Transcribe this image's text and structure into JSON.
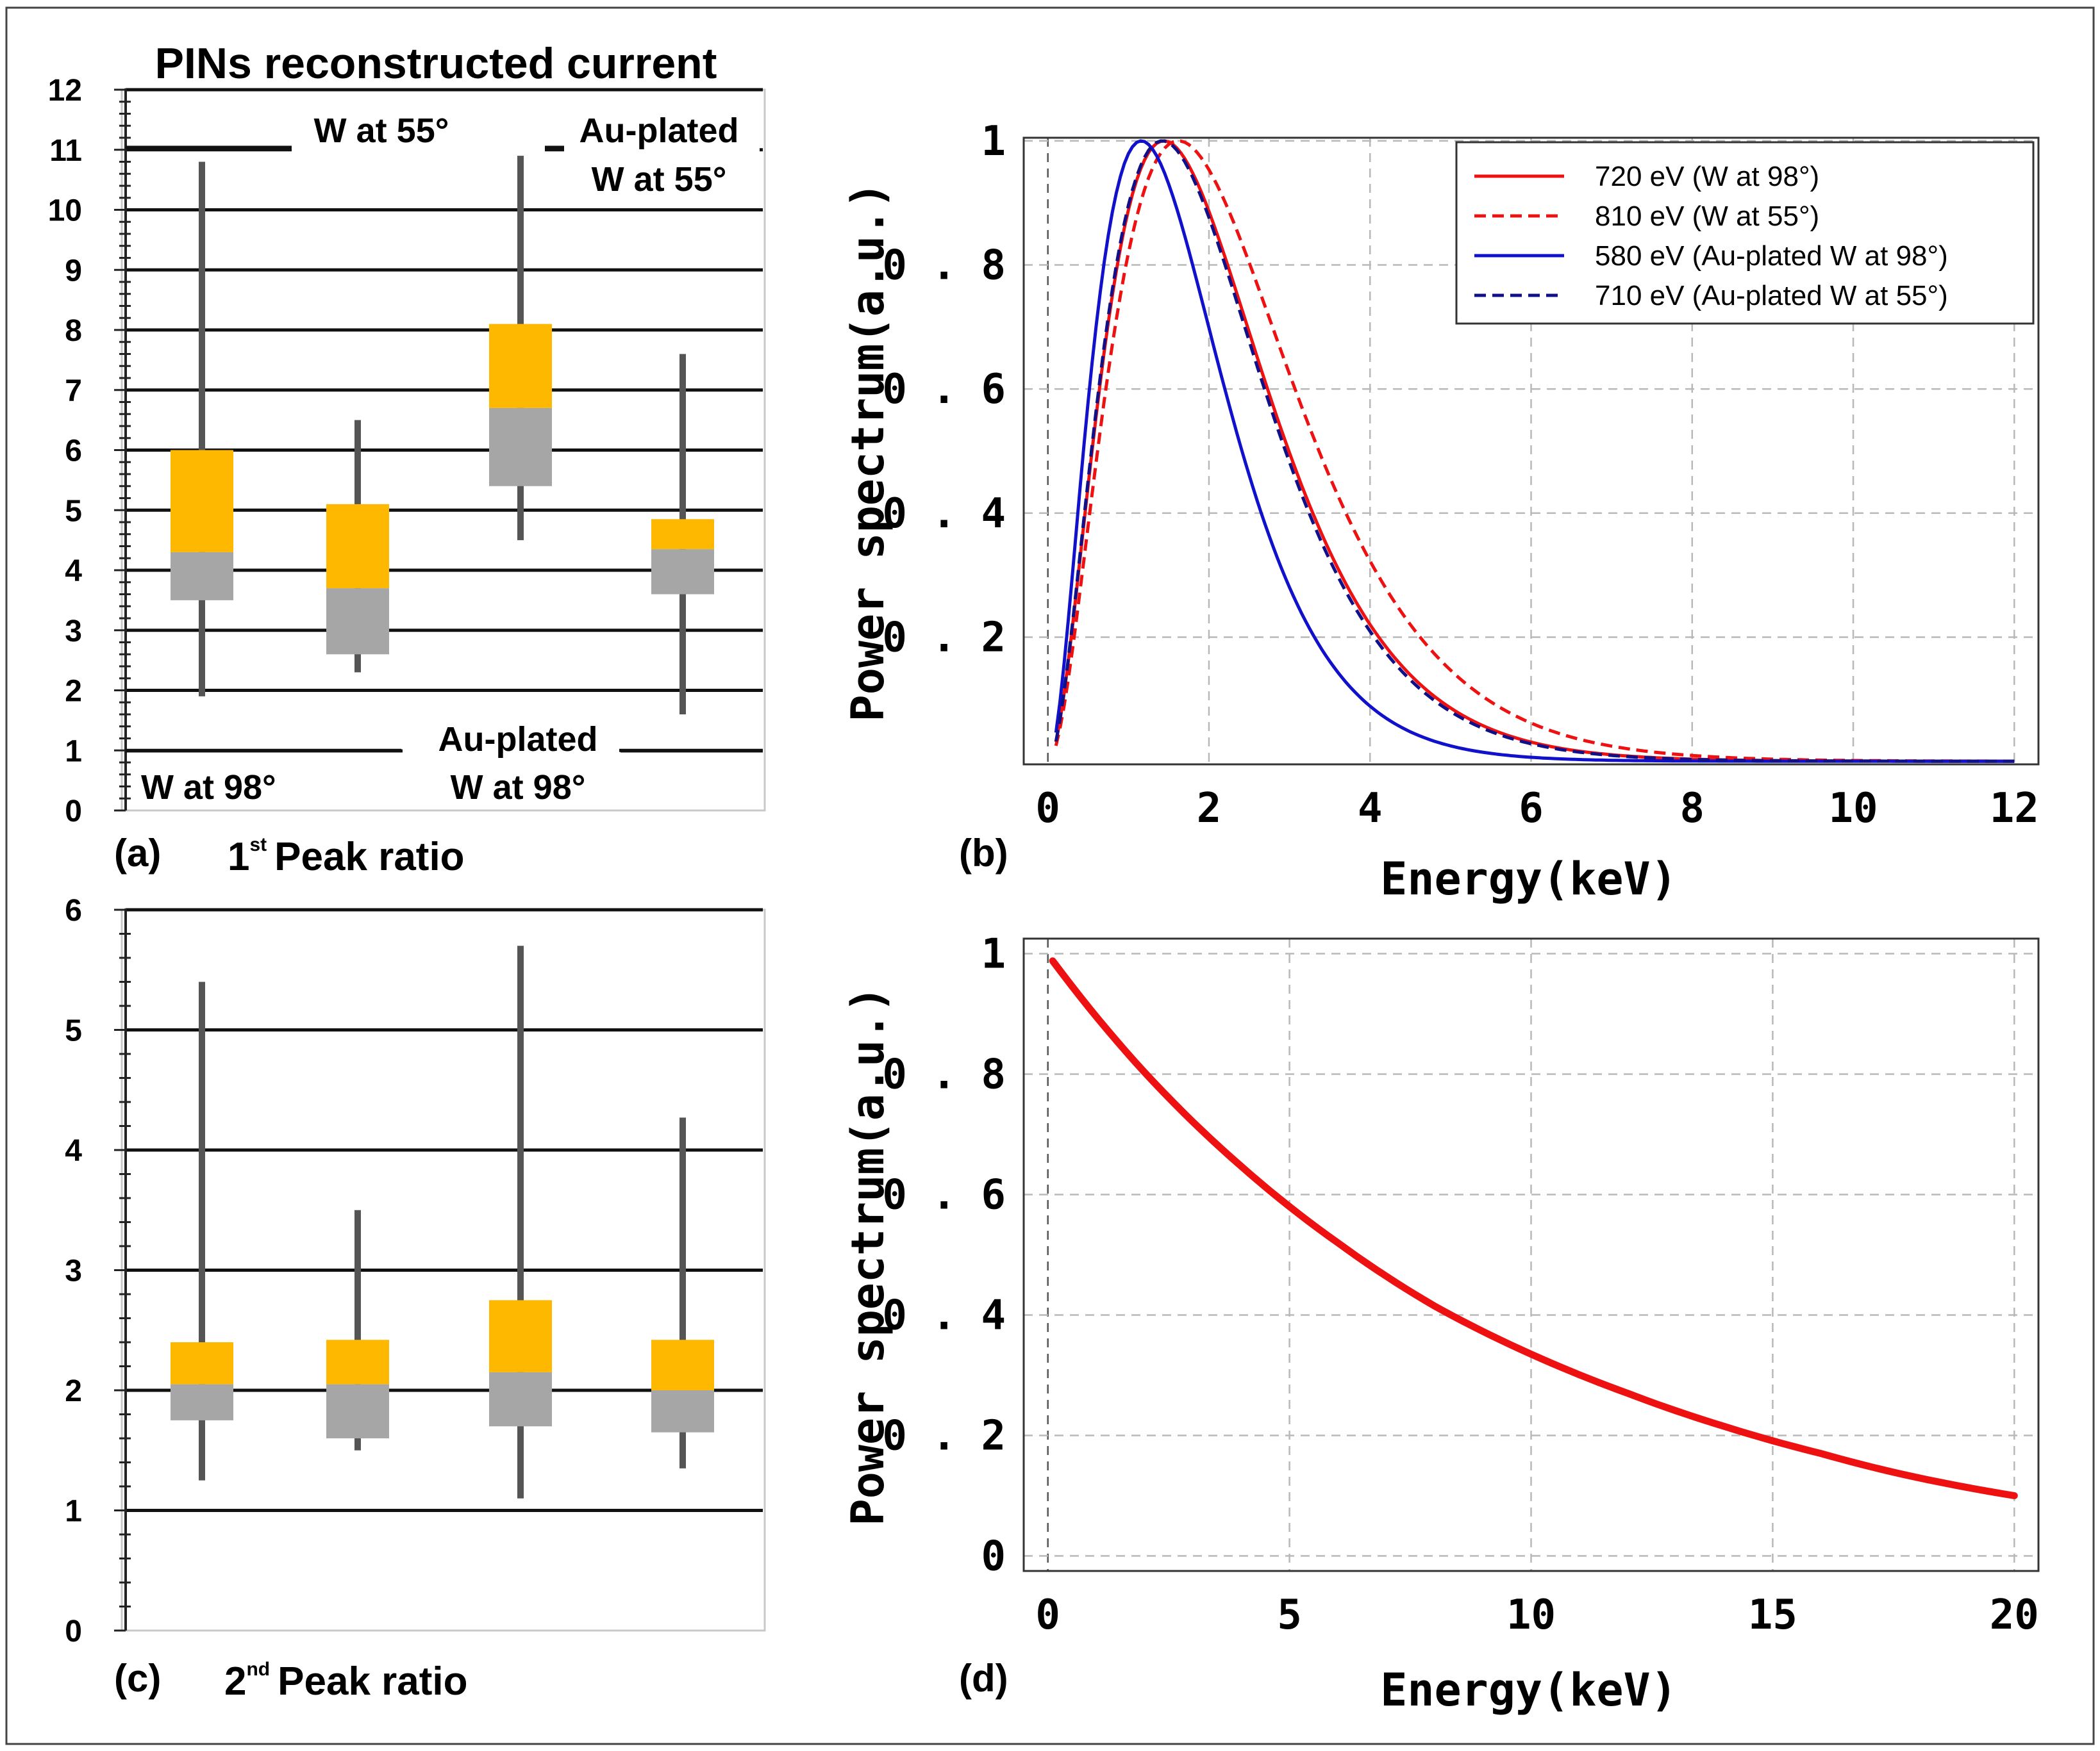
{
  "colors": {
    "box_upper": "#FFB800",
    "box_lower": "#A6A6A6",
    "whisker": "#555555",
    "red": "#EE1111",
    "blue": "#1111CC",
    "navy": "#101088"
  },
  "panel_a": {
    "label": "(a)",
    "title": "PINs reconstructed current",
    "caption_main": "Peak ratio",
    "caption_ordinal": "1",
    "caption_sup": "st",
    "annotations": {
      "w98": "W at 98°",
      "w55": "W at 55°",
      "au98_line1": "Au-plated",
      "au98_line2": "W at 98°",
      "au55_line1": "Au-plated",
      "au55_line2": "W at 55°"
    }
  },
  "panel_b": {
    "label": "(b)"
  },
  "panel_c": {
    "label": "(c)",
    "caption_main": "Peak ratio",
    "caption_ordinal": "2",
    "caption_sup": "nd"
  },
  "panel_d": {
    "label": "(d)"
  },
  "chart_data": [
    {
      "id": "a",
      "type": "box",
      "ylim": [
        0,
        12
      ],
      "yticks": [
        "0",
        "1",
        "2",
        "3",
        "4",
        "5",
        "6",
        "7",
        "8",
        "9",
        "10",
        "11",
        "12"
      ],
      "boxes": [
        {
          "whisker_low": 1.9,
          "q1": 3.5,
          "median": 4.3,
          "q3": 6.0,
          "whisker_high": 10.8
        },
        {
          "whisker_low": 2.3,
          "q1": 2.6,
          "median": 3.7,
          "q3": 5.1,
          "whisker_high": 6.5
        },
        {
          "whisker_low": 4.5,
          "q1": 5.4,
          "median": 6.7,
          "q3": 8.1,
          "whisker_high": 10.9
        },
        {
          "whisker_low": 1.6,
          "q1": 3.6,
          "median": 4.35,
          "q3": 4.85,
          "whisker_high": 7.6
        }
      ]
    },
    {
      "id": "c",
      "type": "box",
      "ylim": [
        0,
        6
      ],
      "yticks": [
        "0",
        "1",
        "2",
        "3",
        "4",
        "5",
        "6"
      ],
      "boxes": [
        {
          "whisker_low": 1.25,
          "q1": 1.75,
          "median": 2.05,
          "q3": 2.4,
          "whisker_high": 5.4
        },
        {
          "whisker_low": 1.5,
          "q1": 1.6,
          "median": 2.05,
          "q3": 2.42,
          "whisker_high": 3.5
        },
        {
          "whisker_low": 1.1,
          "q1": 1.7,
          "median": 2.15,
          "q3": 2.75,
          "whisker_high": 5.7
        },
        {
          "whisker_low": 1.35,
          "q1": 1.65,
          "median": 2.0,
          "q3": 2.42,
          "whisker_high": 4.27
        }
      ]
    },
    {
      "id": "b",
      "type": "line",
      "xlabel": "Energy(keV)",
      "ylabel": "Power spectrum(a.u.)",
      "xlim": [
        -0.3,
        12.3
      ],
      "ylim": [
        -0.005,
        1.005
      ],
      "xticks": [
        "0",
        "2",
        "4",
        "6",
        "8",
        "10",
        "12"
      ],
      "yticks": [
        "0.2",
        "0.4",
        "0.6",
        "0.8",
        "1"
      ],
      "legend_position": "top-right",
      "series": [
        {
          "name": "720 eV (W at 98°)",
          "temperature_keV": 0.72,
          "style": "solid",
          "color_key": "red"
        },
        {
          "name": "810 eV (W at 55°)",
          "temperature_keV": 0.81,
          "style": "dashed",
          "color_key": "red"
        },
        {
          "name": "580 eV (Au-plated W at 98°)",
          "temperature_keV": 0.58,
          "style": "solid",
          "color_key": "blue"
        },
        {
          "name": "710 eV (Au-plated W at 55°)",
          "temperature_keV": 0.71,
          "style": "dashed",
          "color_key": "navy"
        }
      ]
    },
    {
      "id": "d",
      "type": "line",
      "xlabel": "Energy(keV)",
      "ylabel": "Power spectrum(a.u.)",
      "xlim": [
        -0.5,
        20.5
      ],
      "ylim": [
        -0.025,
        1.025
      ],
      "xticks": [
        "0",
        "5",
        "10",
        "15",
        "20"
      ],
      "yticks": [
        "0",
        "0.2",
        "0.4",
        "0.6",
        "0.8",
        "1"
      ],
      "series": [
        {
          "name": "",
          "x": [
            0.1,
            2,
            4,
            6,
            8,
            10,
            12,
            14,
            16,
            18,
            20
          ],
          "y": [
            0.988,
            0.803,
            0.647,
            0.52,
            0.415,
            0.335,
            0.27,
            0.215,
            0.17,
            0.13,
            0.1
          ],
          "color_key": "red"
        }
      ]
    }
  ]
}
